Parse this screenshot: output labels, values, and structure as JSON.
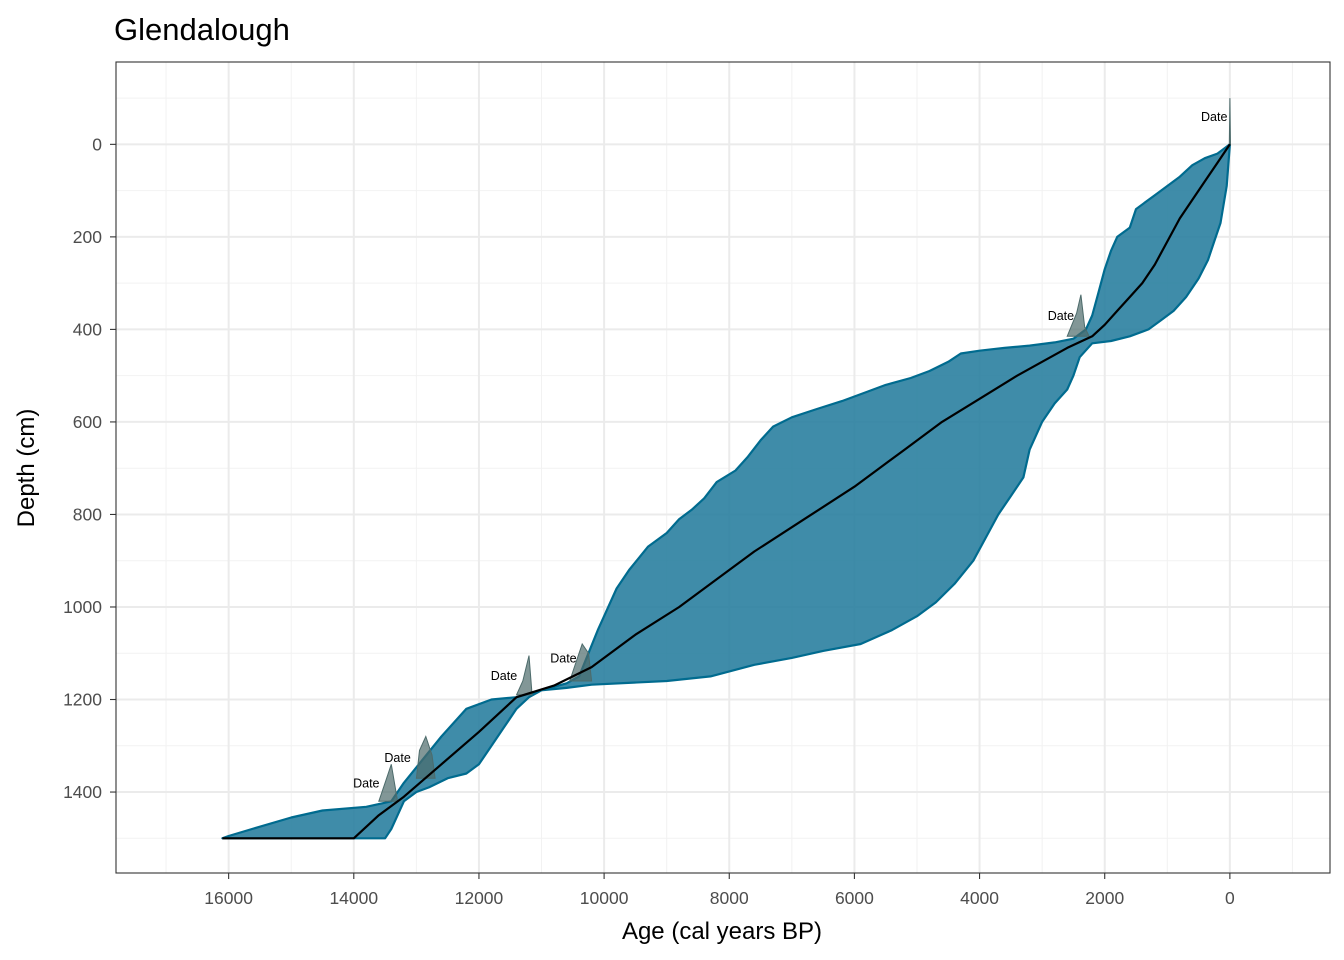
{
  "chart_data": {
    "type": "area",
    "title": "Glendalough",
    "xlabel": "Age (cal years BP)",
    "ylabel": "Depth (cm)",
    "xlim": [
      17800,
      -1600
    ],
    "ylim": [
      1575,
      -178
    ],
    "x_reversed": true,
    "y_reversed": true,
    "grid": true,
    "x_ticks": [
      16000,
      14000,
      12000,
      10000,
      8000,
      6000,
      4000,
      2000,
      0
    ],
    "y_ticks": [
      0,
      200,
      400,
      600,
      800,
      1000,
      1200,
      1400
    ],
    "x_minor_ticks": [
      17000,
      15000,
      13000,
      11000,
      9000,
      7000,
      5000,
      3000,
      1000,
      -1000
    ],
    "y_minor_ticks": [
      -100,
      100,
      300,
      500,
      700,
      900,
      1100,
      1300,
      1500
    ],
    "colors": {
      "band_fill": "#2a7fa0",
      "band_stroke": "#006b8f",
      "median_line": "#000000",
      "date_density": "#4d6b6b"
    },
    "uncertainty_band": {
      "name": "",
      "old_edge": [
        [
          0,
          0
        ],
        [
          200,
          20
        ],
        [
          400,
          30
        ],
        [
          600,
          45
        ],
        [
          800,
          70
        ],
        [
          1000,
          90
        ],
        [
          1200,
          110
        ],
        [
          1500,
          140
        ],
        [
          1600,
          180
        ],
        [
          1800,
          200
        ],
        [
          1900,
          230
        ],
        [
          2000,
          270
        ],
        [
          2100,
          320
        ],
        [
          2200,
          370
        ],
        [
          2300,
          400
        ],
        [
          2500,
          420
        ],
        [
          2800,
          428
        ],
        [
          3200,
          435
        ],
        [
          3600,
          440
        ],
        [
          4000,
          446
        ],
        [
          4300,
          452
        ],
        [
          4500,
          470
        ],
        [
          4800,
          490
        ],
        [
          5100,
          505
        ],
        [
          5500,
          520
        ],
        [
          5800,
          535
        ],
        [
          6200,
          555
        ],
        [
          6600,
          572
        ],
        [
          7000,
          590
        ],
        [
          7300,
          610
        ],
        [
          7500,
          640
        ],
        [
          7700,
          675
        ],
        [
          7900,
          705
        ],
        [
          8200,
          730
        ],
        [
          8400,
          765
        ],
        [
          8600,
          790
        ],
        [
          8800,
          810
        ],
        [
          9000,
          840
        ],
        [
          9300,
          870
        ],
        [
          9600,
          920
        ],
        [
          9800,
          960
        ],
        [
          10000,
          1020
        ],
        [
          10100,
          1050
        ],
        [
          10250,
          1100
        ],
        [
          10400,
          1150
        ],
        [
          10600,
          1165
        ],
        [
          11000,
          1180
        ],
        [
          11400,
          1195
        ],
        [
          11800,
          1200
        ],
        [
          12200,
          1220
        ],
        [
          12400,
          1250
        ],
        [
          12600,
          1280
        ],
        [
          12900,
          1330
        ],
        [
          13200,
          1380
        ],
        [
          13400,
          1420
        ],
        [
          13800,
          1432
        ],
        [
          14500,
          1440
        ],
        [
          15000,
          1455
        ],
        [
          15500,
          1475
        ],
        [
          16000,
          1495
        ],
        [
          16100,
          1500
        ]
      ],
      "young_edge": [
        [
          0,
          0
        ],
        [
          50,
          90
        ],
        [
          100,
          130
        ],
        [
          150,
          170
        ],
        [
          250,
          210
        ],
        [
          350,
          250
        ],
        [
          500,
          290
        ],
        [
          700,
          330
        ],
        [
          900,
          360
        ],
        [
          1100,
          380
        ],
        [
          1300,
          400
        ],
        [
          1600,
          415
        ],
        [
          1900,
          425
        ],
        [
          2200,
          430
        ],
        [
          2400,
          460
        ],
        [
          2500,
          500
        ],
        [
          2600,
          530
        ],
        [
          2800,
          560
        ],
        [
          3000,
          600
        ],
        [
          3200,
          660
        ],
        [
          3300,
          720
        ],
        [
          3500,
          760
        ],
        [
          3700,
          800
        ],
        [
          3900,
          850
        ],
        [
          4100,
          900
        ],
        [
          4400,
          950
        ],
        [
          4700,
          990
        ],
        [
          5000,
          1020
        ],
        [
          5400,
          1050
        ],
        [
          5900,
          1080
        ],
        [
          6500,
          1095
        ],
        [
          7000,
          1110
        ],
        [
          7600,
          1125
        ],
        [
          8300,
          1150
        ],
        [
          9000,
          1160
        ],
        [
          10200,
          1168
        ],
        [
          10600,
          1175
        ],
        [
          11000,
          1180
        ],
        [
          11200,
          1195
        ],
        [
          11400,
          1220
        ],
        [
          11600,
          1260
        ],
        [
          11800,
          1300
        ],
        [
          12000,
          1340
        ],
        [
          12200,
          1360
        ],
        [
          12500,
          1370
        ],
        [
          12800,
          1390
        ],
        [
          13000,
          1400
        ],
        [
          13200,
          1420
        ],
        [
          13300,
          1450
        ],
        [
          13400,
          1480
        ],
        [
          13500,
          1500
        ],
        [
          14000,
          1500
        ],
        [
          16100,
          1500
        ]
      ]
    },
    "median_line": [
      [
        0,
        0
      ],
      [
        200,
        40
      ],
      [
        400,
        80
      ],
      [
        600,
        120
      ],
      [
        800,
        160
      ],
      [
        1000,
        210
      ],
      [
        1200,
        260
      ],
      [
        1400,
        300
      ],
      [
        1600,
        330
      ],
      [
        1800,
        360
      ],
      [
        2000,
        390
      ],
      [
        2200,
        415
      ],
      [
        2600,
        440
      ],
      [
        3000,
        470
      ],
      [
        3400,
        500
      ],
      [
        4000,
        550
      ],
      [
        4600,
        600
      ],
      [
        5200,
        660
      ],
      [
        5600,
        700
      ],
      [
        6000,
        740
      ],
      [
        6800,
        810
      ],
      [
        7600,
        880
      ],
      [
        8200,
        940
      ],
      [
        8800,
        1000
      ],
      [
        9500,
        1060
      ],
      [
        10200,
        1130
      ],
      [
        10800,
        1170
      ],
      [
        11400,
        1195
      ],
      [
        12000,
        1270
      ],
      [
        12600,
        1340
      ],
      [
        13200,
        1410
      ],
      [
        13600,
        1450
      ],
      [
        14000,
        1500
      ],
      [
        16100,
        1500
      ]
    ],
    "annotations": [
      {
        "text": "Date",
        "x": 250,
        "y": -50
      },
      {
        "text": "Date",
        "x": 2700,
        "y": 380
      },
      {
        "text": "Date",
        "x": 10650,
        "y": 1120
      },
      {
        "text": "Date",
        "x": 11600,
        "y": 1158
      },
      {
        "text": "Date",
        "x": 13300,
        "y": 1335
      },
      {
        "text": "Date",
        "x": 13800,
        "y": 1390
      }
    ],
    "date_densities": [
      {
        "center_age": 0,
        "depth": 0,
        "peaks": [
          [
            -10,
            0
          ],
          [
            0,
            -100
          ],
          [
            10,
            0
          ]
        ]
      },
      {
        "center_age": 2400,
        "depth": 415,
        "peaks": [
          [
            2600,
            0
          ],
          [
            2450,
            -50
          ],
          [
            2380,
            -90
          ],
          [
            2320,
            -20
          ],
          [
            2250,
            0
          ]
        ]
      },
      {
        "center_age": 10400,
        "depth": 1160,
        "peaks": [
          [
            10550,
            0
          ],
          [
            10450,
            -40
          ],
          [
            10350,
            -80
          ],
          [
            10250,
            -60
          ],
          [
            10200,
            0
          ]
        ]
      },
      {
        "center_age": 11250,
        "depth": 1190,
        "peaks": [
          [
            11400,
            0
          ],
          [
            11300,
            -30
          ],
          [
            11200,
            -85
          ],
          [
            11150,
            0
          ]
        ]
      },
      {
        "center_age": 12900,
        "depth": 1370,
        "peaks": [
          [
            13000,
            0
          ],
          [
            12950,
            -60
          ],
          [
            12850,
            -90
          ],
          [
            12750,
            -50
          ],
          [
            12700,
            0
          ]
        ]
      },
      {
        "center_age": 13500,
        "depth": 1420,
        "peaks": [
          [
            13600,
            0
          ],
          [
            13500,
            -40
          ],
          [
            13400,
            -80
          ],
          [
            13300,
            0
          ]
        ]
      }
    ]
  }
}
